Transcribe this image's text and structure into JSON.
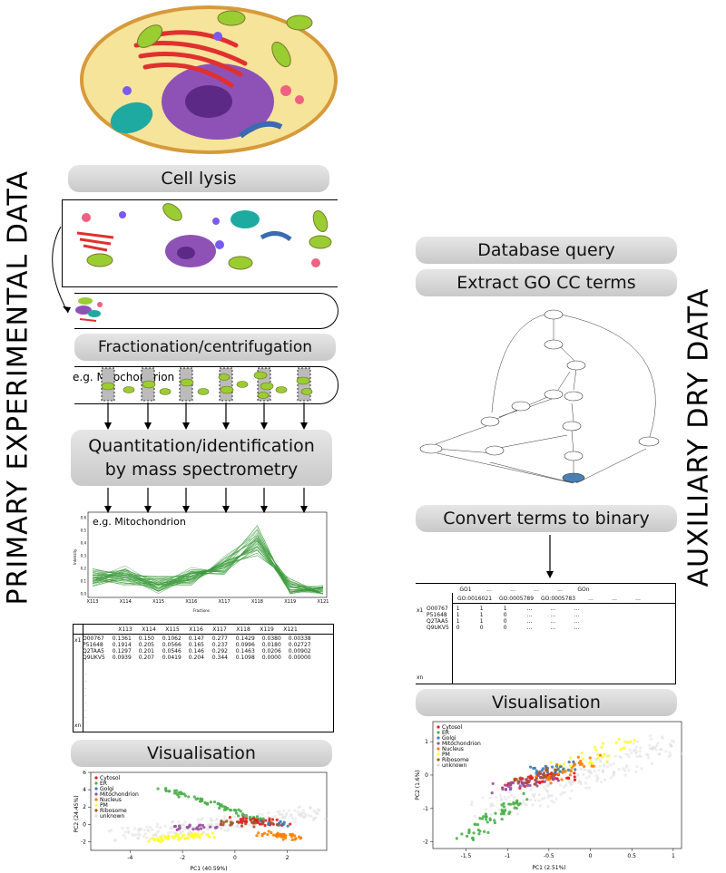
{
  "side_labels": {
    "left": "PRIMARY  EXPERIMENTAL  DATA",
    "right": "AUXILIARY  DRY  DATA"
  },
  "left_steps": {
    "cell_lysis": "Cell lysis",
    "fractionation": "Fractionation/centrifugation",
    "example_label": "e.g. Mitochondrion",
    "quantitation_line1": "Quantitation/identification",
    "quantitation_line2": "by mass spectrometry",
    "visualisation": "Visualisation"
  },
  "right_steps": {
    "database_query": "Database query",
    "extract_go": "Extract GO CC terms",
    "convert_binary": "Convert terms to binary",
    "visualisation": "Visualisation"
  },
  "profile_plot": {
    "example_label": "e.g. Mitochondrion",
    "ylabel": "Intensity",
    "xlabel": "Fractions",
    "x_ticks": [
      "X113",
      "X114",
      "X115",
      "X116",
      "X117",
      "X118",
      "X119",
      "X121"
    ],
    "y_ticks": [
      "0.0",
      "0.1",
      "0.2",
      "0.3",
      "0.4",
      "0.5",
      "0.6"
    ]
  },
  "quant_table": {
    "headers": [
      "X113",
      "X114",
      "X115",
      "X116",
      "X117",
      "X118",
      "X119",
      "X121"
    ],
    "first_col": "x1",
    "last_col": "xn",
    "rows": [
      {
        "id": "O00767",
        "values": [
          "0.1361",
          "0.150",
          "0.1062",
          "0.147",
          "0.277",
          "0.1429",
          "0.0380",
          "0.00338"
        ]
      },
      {
        "id": "P51648",
        "values": [
          "0.1914",
          "0.205",
          "0.0566",
          "0.165",
          "0.237",
          "0.0996",
          "0.0180",
          "0.02727"
        ]
      },
      {
        "id": "Q2TAA5",
        "values": [
          "0.1297",
          "0.201",
          "0.0546",
          "0.146",
          "0.292",
          "0.1463",
          "0.0206",
          "0.00902"
        ]
      },
      {
        "id": "Q9UKV5",
        "values": [
          "0.0939",
          "0.207",
          "0.0419",
          "0.204",
          "0.344",
          "0.1098",
          "0.0000",
          "0.00000"
        ]
      }
    ]
  },
  "go_table": {
    "headers": [
      "GO1",
      "...",
      "...",
      "...",
      "...",
      "GOn"
    ],
    "subheaders": [
      "GO:0016021",
      "GO:0005789",
      "GO:0005783",
      "...",
      "...",
      "..."
    ],
    "first_col": "x1",
    "last_col": "xn",
    "rows": [
      {
        "id": "O00767",
        "values": [
          "1",
          "1",
          "1",
          "...",
          "...",
          "..."
        ]
      },
      {
        "id": "P51648",
        "values": [
          "1",
          "1",
          "0",
          "...",
          "...",
          "..."
        ]
      },
      {
        "id": "Q2TAA5",
        "values": [
          "1",
          "1",
          "0",
          "...",
          "...",
          "..."
        ]
      },
      {
        "id": "Q9UKV5",
        "values": [
          "0",
          "0",
          "0",
          "...",
          "...",
          "..."
        ]
      }
    ]
  },
  "legend": [
    "Cytosol",
    "ER",
    "Golgi",
    "Mitochondrion",
    "Nucleus",
    "PM",
    "Ribosome",
    "unknown"
  ],
  "legend_colors": [
    "#e41a1c",
    "#4daf4a",
    "#377eb8",
    "#984ea3",
    "#ff7f00",
    "#ffff33",
    "#a65628",
    "#dddddd"
  ],
  "chart_data": [
    {
      "type": "line",
      "title": "e.g. Mitochondrion",
      "xlabel": "Fractions",
      "ylabel": "Intensity",
      "categories": [
        "X113",
        "X114",
        "X115",
        "X116",
        "X117",
        "X118",
        "X119",
        "X121"
      ],
      "ylim": [
        0,
        0.6
      ],
      "series": [
        {
          "values": [
            0.12,
            0.14,
            0.06,
            0.13,
            0.19,
            0.42,
            0.05,
            0.01
          ]
        },
        {
          "values": [
            0.14,
            0.16,
            0.08,
            0.15,
            0.22,
            0.38,
            0.04,
            0.02
          ]
        },
        {
          "values": [
            0.1,
            0.12,
            0.05,
            0.12,
            0.24,
            0.46,
            0.06,
            0.0
          ]
        },
        {
          "values": [
            0.16,
            0.18,
            0.1,
            0.17,
            0.2,
            0.34,
            0.08,
            0.03
          ]
        },
        {
          "values": [
            0.09,
            0.1,
            0.04,
            0.1,
            0.26,
            0.5,
            0.02,
            0.01
          ]
        },
        {
          "values": [
            0.13,
            0.15,
            0.07,
            0.14,
            0.21,
            0.4,
            0.05,
            0.02
          ]
        }
      ]
    },
    {
      "type": "scatter",
      "xlabel": "PC1 (40.59%)",
      "ylabel": "PC2 (24.45%)",
      "xlim": [
        -5.5,
        3.5
      ],
      "ylim": [
        -3,
        6
      ],
      "x_ticks": [
        -4,
        -2,
        0,
        2
      ],
      "y_ticks": [
        -2,
        0,
        2,
        4,
        6
      ],
      "legend": [
        "Cytosol",
        "ER",
        "Golgi",
        "Mitochondrion",
        "Nucleus",
        "PM",
        "Ribosome",
        "unknown"
      ]
    },
    {
      "type": "scatter",
      "xlabel": "PC1 (2.51%)",
      "ylabel": "PC2 (1.6%)",
      "xlim": [
        -1.9,
        1.1
      ],
      "ylim": [
        -2.2,
        1.6
      ],
      "x_ticks": [
        -1.5,
        -1.0,
        -0.5,
        0.0,
        0.5,
        1.0
      ],
      "y_ticks": [
        -2,
        -1,
        0,
        1
      ],
      "legend": [
        "Cytosol",
        "ER",
        "Golgi",
        "Mitochondrion",
        "Nucleus",
        "PM",
        "Ribosome",
        "unknown"
      ]
    }
  ]
}
